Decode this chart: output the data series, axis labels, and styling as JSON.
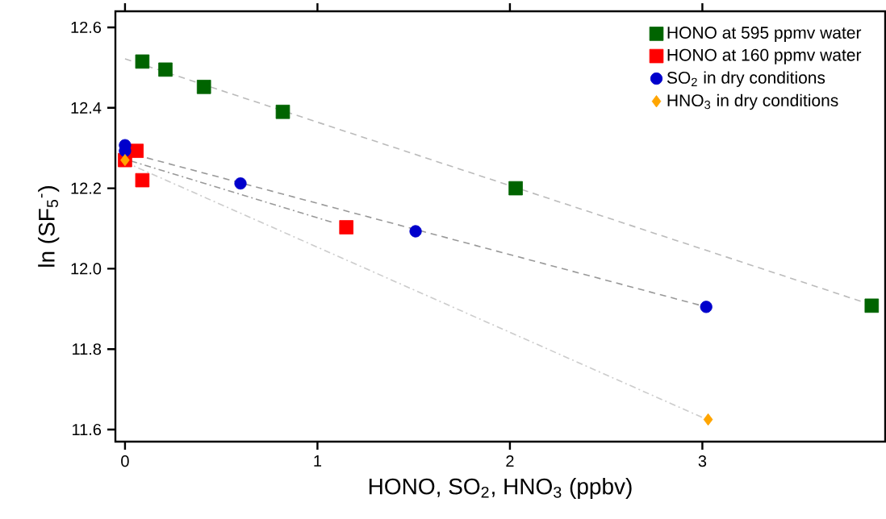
{
  "chart_data": {
    "type": "scatter",
    "xlabel": "HONO, SO$_{2}$, HNO$_{3}$ (ppbv)",
    "ylabel": "ln (SF$_{5}$$^{-}$)",
    "xlim": [
      -0.05,
      3.95
    ],
    "ylim": [
      11.57,
      12.64
    ],
    "xticks": [
      0,
      1,
      2,
      3
    ],
    "yticks": [
      {
        "value": 11.6,
        "label": "11.6"
      },
      {
        "value": 11.8,
        "label": "11.8"
      },
      {
        "value": 12.0,
        "label": "12.0"
      },
      {
        "value": 12.2,
        "label": "12.2"
      },
      {
        "value": 12.4,
        "label": "12.4"
      },
      {
        "value": 12.6,
        "label": "12.6"
      }
    ],
    "grid": false,
    "legend": "top right",
    "series": [
      {
        "name": "HONO at 595 ppmv water",
        "color": "#006400",
        "marker": "square",
        "x": [
          0.09,
          0.21,
          0.41,
          0.82,
          2.03,
          3.88
        ],
        "values": [
          12.515,
          12.495,
          12.452,
          12.39,
          12.2,
          11.908
        ]
      },
      {
        "name": "HONO at 160 ppmv water",
        "color": "#ff0000",
        "marker": "square",
        "x": [
          0,
          0.06,
          0.09,
          1.15
        ],
        "values": [
          12.27,
          12.293,
          12.22,
          12.103
        ]
      },
      {
        "name": "SO$_{2}$ in dry conditions",
        "color": "#0000cc",
        "marker": "circle",
        "x": [
          0,
          0,
          0.6,
          1.51,
          3.02
        ],
        "values": [
          12.307,
          12.293,
          12.212,
          12.093,
          11.905
        ]
      },
      {
        "name": "HNO$_{3}$ in dry conditions",
        "color": "#ffa500",
        "marker": "diamond",
        "x": [
          0,
          3.03
        ],
        "values": [
          12.27,
          11.625
        ]
      },
      {
        "type": "line",
        "color": "#bbbbbb",
        "line_style": "dashed",
        "marker": "none",
        "x": [
          0,
          3.88
        ],
        "values": [
          12.522,
          11.91
        ]
      },
      {
        "type": "line",
        "color": "#999999",
        "line_style": "dashed",
        "marker": "none",
        "x": [
          0,
          3.02
        ],
        "values": [
          12.29,
          11.905
        ]
      },
      {
        "type": "line",
        "color": "#999999",
        "line_style": "dashdot",
        "marker": "none",
        "x": [
          0.03,
          1.08
        ],
        "values": [
          12.268,
          12.115
        ]
      },
      {
        "type": "line",
        "color": "#cccccc",
        "line_style": "dashdot",
        "marker": "none",
        "x": [
          0,
          3.01
        ],
        "values": [
          12.265,
          11.628
        ]
      }
    ]
  }
}
